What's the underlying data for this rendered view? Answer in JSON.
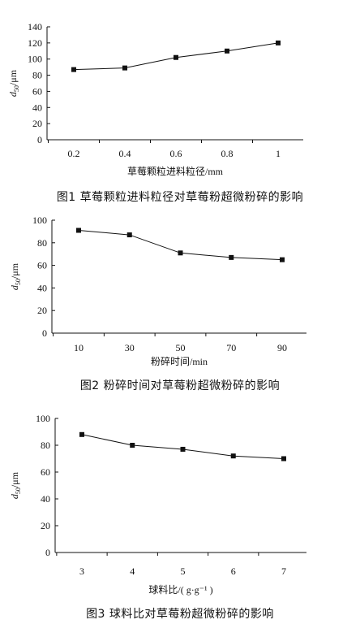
{
  "chart_data": [
    {
      "type": "line",
      "x": [
        0.2,
        0.4,
        0.6,
        0.8,
        1
      ],
      "x_ticks": [
        "0.2",
        "0.4",
        "0.6",
        "0.8",
        "1"
      ],
      "values": [
        87,
        89,
        102,
        110,
        120
      ],
      "ylim": [
        0,
        140
      ],
      "y_ticks": [
        "0",
        "20",
        "40",
        "60",
        "80",
        "100",
        "120",
        "140"
      ],
      "ylabel": "d50/μm",
      "xlabel": "草莓颗粒进料粒径/mm",
      "caption": "图1  草莓颗粒进料粒径对草莓粉超微粉碎的影响",
      "grid": false,
      "marker": "square"
    },
    {
      "type": "line",
      "x": [
        10,
        30,
        50,
        70,
        90
      ],
      "x_ticks": [
        "10",
        "30",
        "50",
        "70",
        "90"
      ],
      "values": [
        91,
        87,
        71,
        67,
        65
      ],
      "ylim": [
        0,
        100
      ],
      "y_ticks": [
        "0",
        "20",
        "40",
        "60",
        "80",
        "100"
      ],
      "ylabel": "d50/μm",
      "xlabel": "粉碎时间/min",
      "caption": "图2  粉碎时间对草莓粉超微粉碎的影响",
      "grid": false,
      "marker": "square"
    },
    {
      "type": "line",
      "x": [
        3,
        4,
        5,
        6,
        7
      ],
      "x_ticks": [
        "3",
        "4",
        "5",
        "6",
        "7"
      ],
      "values": [
        88,
        80,
        77,
        72,
        70
      ],
      "ylim": [
        0,
        100
      ],
      "y_ticks": [
        "0",
        "20",
        "40",
        "60",
        "80",
        "100"
      ],
      "ylabel": "d50/μm",
      "xlabel": "球料比/( g·g⁻¹ )",
      "caption": "图3  球料比对草莓粉超微粉碎的影响",
      "grid": false,
      "marker": "square"
    }
  ]
}
